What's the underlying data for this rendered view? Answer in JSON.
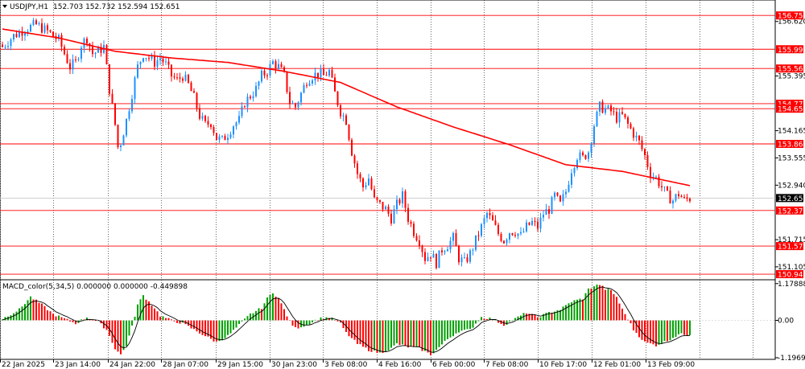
{
  "header": {
    "symbol": "USDJPY,H1",
    "ohlc": "152.703 152.732 152.594 152.651"
  },
  "indicator_header": "MACD_color(5,34,5) 0.000000 0.000000 -0.449898",
  "colors": {
    "bull": "#1e90ff",
    "bear": "#ff0000",
    "ma": "#ff0000",
    "level": "#ff0000",
    "hist_up": "#00a000",
    "hist_down": "#ff0000",
    "signal": "#000000",
    "grid": "#000000",
    "current_price_bg": "#000000"
  },
  "chart_data": [
    {
      "type": "candlestick",
      "title": "USDJPY,H1",
      "ylim": [
        150.85,
        156.85
      ],
      "price_axis_ticks": [
        "156.620",
        "155.395",
        "154.165",
        "153.555",
        "152.940",
        "151.715",
        "151.105"
      ],
      "horizontal_levels": [
        "156.756",
        "155.996",
        "155.563",
        "154.772",
        "154.659",
        "153.868",
        "152.371",
        "151.571",
        "150.940"
      ],
      "current_price": "152.651",
      "time_labels": [
        "22 Jan 2025",
        "23 Jan 14:00",
        "24 Jan 22:00",
        "28 Jan 07:00",
        "29 Jan 15:00",
        "30 Jan 23:00",
        "3 Feb 08:00",
        "4 Feb 16:00",
        "6 Feb 00:00",
        "7 Feb 08:00",
        "10 Feb 17:00",
        "12 Feb 01:00",
        "13 Feb 09:00"
      ],
      "close_path": [
        [
          0,
          156.05
        ],
        [
          4,
          156.3
        ],
        [
          8,
          156.45
        ],
        [
          12,
          156.55
        ],
        [
          16,
          156.4
        ],
        [
          20,
          156.2
        ],
        [
          24,
          155.6
        ],
        [
          26,
          155.7
        ],
        [
          28,
          156.1
        ],
        [
          30,
          156.25
        ],
        [
          32,
          155.9
        ],
        [
          34,
          155.95
        ],
        [
          36,
          156.05
        ],
        [
          38,
          155.1
        ],
        [
          40,
          154.3
        ],
        [
          41,
          153.8
        ],
        [
          42,
          153.9
        ],
        [
          44,
          154.4
        ],
        [
          46,
          155.0
        ],
        [
          48,
          155.6
        ],
        [
          50,
          155.9
        ],
        [
          52,
          155.8
        ],
        [
          54,
          155.7
        ],
        [
          56,
          155.8
        ],
        [
          58,
          155.65
        ],
        [
          60,
          155.4
        ],
        [
          62,
          155.3
        ],
        [
          64,
          155.4
        ],
        [
          66,
          155.2
        ],
        [
          68,
          154.9
        ],
        [
          70,
          154.5
        ],
        [
          72,
          154.3
        ],
        [
          74,
          154.35
        ],
        [
          76,
          154.0
        ],
        [
          78,
          153.95
        ],
        [
          80,
          154.1
        ],
        [
          82,
          154.3
        ],
        [
          84,
          154.4
        ],
        [
          86,
          154.8
        ],
        [
          88,
          154.95
        ],
        [
          90,
          155.1
        ],
        [
          92,
          155.4
        ],
        [
          94,
          155.5
        ],
        [
          96,
          155.7
        ],
        [
          98,
          155.6
        ],
        [
          100,
          155.4
        ],
        [
          102,
          154.8
        ],
        [
          104,
          154.7
        ],
        [
          106,
          155.0
        ],
        [
          108,
          155.3
        ],
        [
          110,
          155.4
        ],
        [
          112,
          155.45
        ],
        [
          114,
          155.4
        ],
        [
          116,
          155.5
        ],
        [
          118,
          155.0
        ],
        [
          120,
          154.6
        ],
        [
          122,
          154.4
        ],
        [
          124,
          153.7
        ],
        [
          126,
          153.2
        ],
        [
          128,
          152.9
        ],
        [
          130,
          153.1
        ],
        [
          132,
          152.6
        ],
        [
          134,
          152.5
        ],
        [
          136,
          152.4
        ],
        [
          138,
          152.2
        ],
        [
          140,
          152.5
        ],
        [
          142,
          152.7
        ],
        [
          144,
          152.2
        ],
        [
          146,
          151.9
        ],
        [
          148,
          151.7
        ],
        [
          150,
          151.3
        ],
        [
          152,
          151.4
        ],
        [
          154,
          151.2
        ],
        [
          156,
          151.5
        ],
        [
          158,
          151.6
        ],
        [
          160,
          151.75
        ],
        [
          162,
          151.3
        ],
        [
          164,
          151.2
        ],
        [
          166,
          151.4
        ],
        [
          168,
          151.7
        ],
        [
          170,
          152.0
        ],
        [
          172,
          152.3
        ],
        [
          174,
          152.1
        ],
        [
          176,
          151.85
        ],
        [
          178,
          151.7
        ],
        [
          180,
          151.9
        ],
        [
          182,
          151.9
        ],
        [
          184,
          151.8
        ],
        [
          186,
          152.0
        ],
        [
          188,
          152.1
        ],
        [
          190,
          152.0
        ],
        [
          192,
          152.3
        ],
        [
          194,
          152.4
        ],
        [
          196,
          152.7
        ],
        [
          198,
          152.5
        ],
        [
          200,
          152.8
        ],
        [
          202,
          153.3
        ],
        [
          204,
          153.6
        ],
        [
          206,
          153.55
        ],
        [
          208,
          153.7
        ],
        [
          210,
          154.3
        ],
        [
          212,
          154.7
        ],
        [
          214,
          154.65
        ],
        [
          216,
          154.6
        ],
        [
          218,
          154.45
        ],
        [
          220,
          154.5
        ],
        [
          222,
          154.3
        ],
        [
          224,
          154.1
        ],
        [
          226,
          153.9
        ],
        [
          228,
          153.6
        ],
        [
          230,
          153.2
        ],
        [
          232,
          153.1
        ],
        [
          234,
          152.9
        ],
        [
          236,
          152.7
        ],
        [
          238,
          152.6
        ],
        [
          240,
          152.75
        ],
        [
          242,
          152.6
        ],
        [
          244,
          152.65
        ]
      ],
      "moving_average": [
        [
          0,
          156.45
        ],
        [
          20,
          156.25
        ],
        [
          40,
          155.95
        ],
        [
          60,
          155.8
        ],
        [
          80,
          155.7
        ],
        [
          100,
          155.5
        ],
        [
          120,
          155.25
        ],
        [
          140,
          154.7
        ],
        [
          160,
          154.25
        ],
        [
          180,
          153.85
        ],
        [
          200,
          153.4
        ],
        [
          220,
          153.25
        ],
        [
          244,
          152.93
        ]
      ]
    },
    {
      "type": "bar",
      "title": "MACD_color(5,34,5) 0.000000 0.000000 -0.449898",
      "ylim": [
        -1.25,
        1.25
      ],
      "axis_ticks": [
        "1.178881",
        "0.00",
        "-1.196945"
      ],
      "histogram_path": [
        [
          0,
          0.05
        ],
        [
          6,
          0.35
        ],
        [
          10,
          0.75
        ],
        [
          14,
          0.5
        ],
        [
          18,
          0.2
        ],
        [
          22,
          0.05
        ],
        [
          26,
          -0.1
        ],
        [
          30,
          0.1
        ],
        [
          34,
          -0.05
        ],
        [
          37,
          -0.3
        ],
        [
          40,
          -0.9
        ],
        [
          42,
          -1.1
        ],
        [
          44,
          -0.8
        ],
        [
          46,
          -0.2
        ],
        [
          48,
          0.5
        ],
        [
          50,
          0.8
        ],
        [
          52,
          0.6
        ],
        [
          54,
          0.4
        ],
        [
          56,
          0.15
        ],
        [
          60,
          0.0
        ],
        [
          64,
          -0.1
        ],
        [
          68,
          -0.3
        ],
        [
          72,
          -0.5
        ],
        [
          76,
          -0.7
        ],
        [
          80,
          -0.5
        ],
        [
          84,
          -0.15
        ],
        [
          88,
          0.2
        ],
        [
          92,
          0.4
        ],
        [
          94,
          0.7
        ],
        [
          96,
          0.9
        ],
        [
          98,
          0.7
        ],
        [
          100,
          0.35
        ],
        [
          102,
          -0.05
        ],
        [
          104,
          -0.25
        ],
        [
          108,
          -0.15
        ],
        [
          112,
          0.05
        ],
        [
          116,
          0.1
        ],
        [
          120,
          -0.1
        ],
        [
          122,
          -0.4
        ],
        [
          126,
          -0.75
        ],
        [
          130,
          -0.95
        ],
        [
          134,
          -1.05
        ],
        [
          138,
          -0.9
        ],
        [
          140,
          -0.75
        ],
        [
          144,
          -0.85
        ],
        [
          148,
          -0.9
        ],
        [
          152,
          -1.1
        ],
        [
          154,
          -0.95
        ],
        [
          158,
          -0.6
        ],
        [
          162,
          -0.35
        ],
        [
          166,
          -0.3
        ],
        [
          170,
          0.1
        ],
        [
          174,
          0.05
        ],
        [
          178,
          -0.15
        ],
        [
          182,
          0.05
        ],
        [
          186,
          0.25
        ],
        [
          190,
          0.1
        ],
        [
          194,
          0.25
        ],
        [
          198,
          0.35
        ],
        [
          202,
          0.6
        ],
        [
          206,
          0.7
        ],
        [
          208,
          1.0
        ],
        [
          210,
          1.1
        ],
        [
          212,
          1.15
        ],
        [
          214,
          1.0
        ],
        [
          216,
          0.95
        ],
        [
          218,
          0.75
        ],
        [
          220,
          0.35
        ],
        [
          222,
          0.05
        ],
        [
          224,
          -0.3
        ],
        [
          226,
          -0.5
        ],
        [
          228,
          -0.7
        ],
        [
          232,
          -0.8
        ],
        [
          236,
          -0.65
        ],
        [
          240,
          -0.45
        ],
        [
          244,
          -0.45
        ]
      ]
    }
  ]
}
